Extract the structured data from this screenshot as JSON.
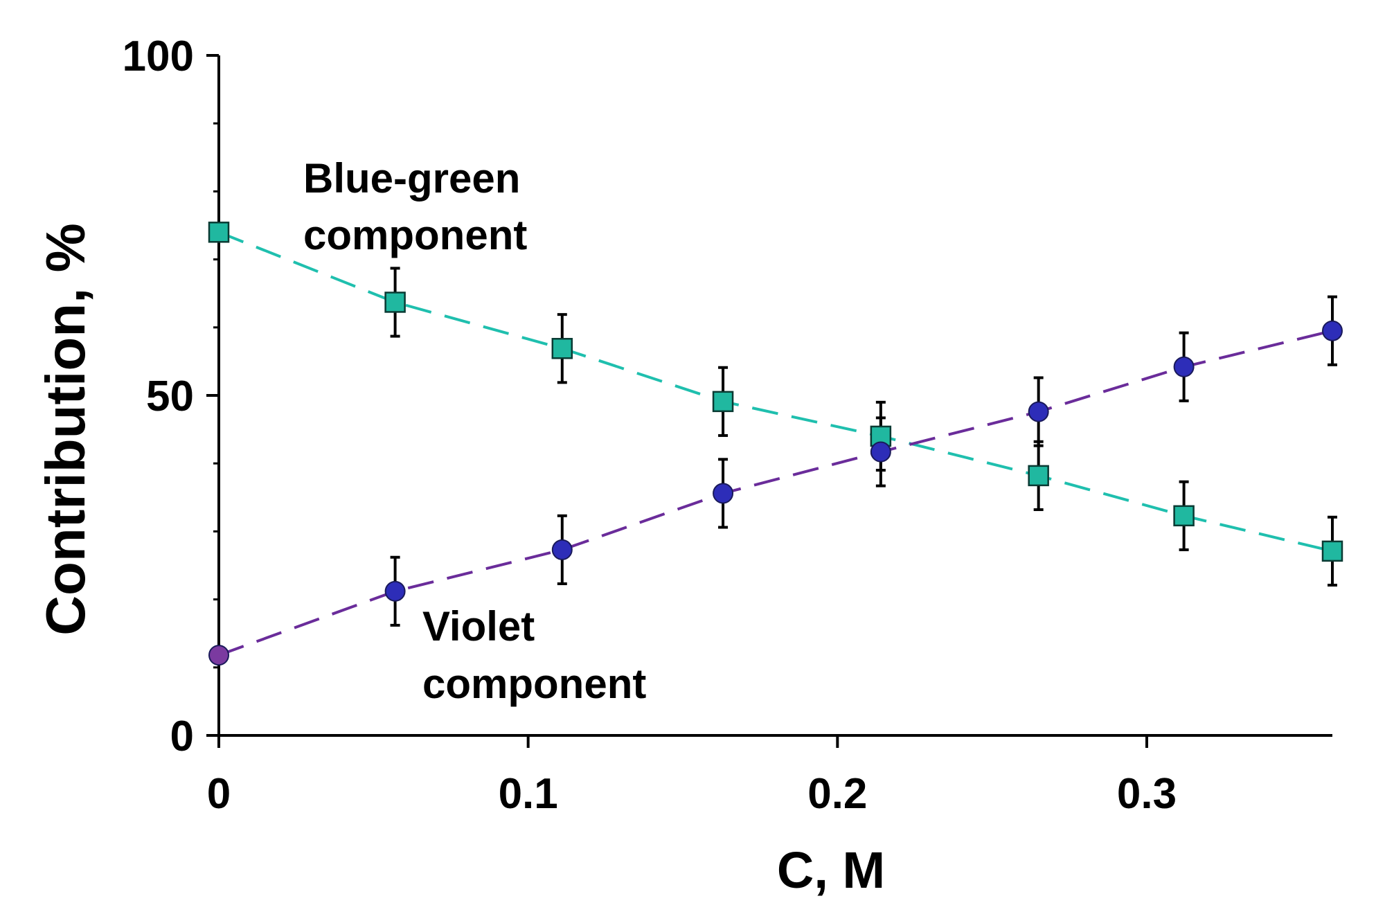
{
  "chart_data": {
    "type": "line",
    "title": "",
    "xlabel": "C, M",
    "ylabel": "Contribution, %",
    "xlim": [
      0,
      0.36
    ],
    "ylim": [
      0,
      100
    ],
    "x_ticks": [
      0,
      0.1,
      0.2,
      0.3
    ],
    "x_tick_labels": [
      "0",
      "0.1",
      "0.2",
      "0.3"
    ],
    "y_ticks": [
      0,
      50,
      100
    ],
    "y_tick_labels": [
      "0",
      "50",
      "100"
    ],
    "grid": false,
    "series": [
      {
        "name": "Blue-green component",
        "label_lines": [
          "Blue-green",
          "component"
        ],
        "marker": "square",
        "color": "#20b8a0",
        "line_color": "#1fbfae",
        "x": [
          0,
          0.057,
          0.111,
          0.163,
          0.214,
          0.265,
          0.312,
          0.36
        ],
        "y": [
          74,
          63.7,
          56.9,
          49.1,
          44,
          38.2,
          32.3,
          27.1
        ],
        "error": [
          null,
          5,
          5,
          5,
          5,
          5,
          5,
          5
        ]
      },
      {
        "name": "Violet component",
        "label_lines": [
          "Violet",
          "component"
        ],
        "marker": "circle",
        "color": "#2d2db8",
        "line_color": "#6a2c9a",
        "first_marker_color": "#7b3aa0",
        "x": [
          0,
          0.057,
          0.111,
          0.163,
          0.214,
          0.265,
          0.312,
          0.36
        ],
        "y": [
          11.8,
          21.2,
          27.3,
          35.6,
          41.7,
          47.6,
          54.2,
          59.5
        ],
        "error": [
          null,
          5,
          5,
          5,
          5,
          5,
          5,
          5
        ]
      }
    ]
  }
}
